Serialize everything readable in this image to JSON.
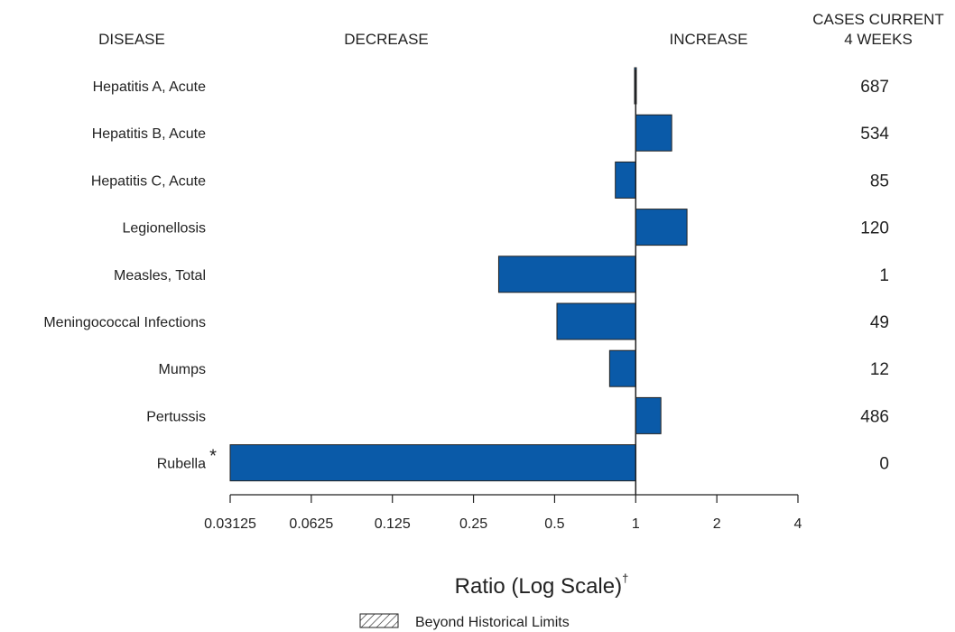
{
  "chart_data": {
    "type": "bar",
    "orientation": "horizontal",
    "x_scale": "log2",
    "xlim": [
      0.03125,
      4
    ],
    "baseline": 1,
    "headers": {
      "disease": "DISEASE",
      "decrease": "DECREASE",
      "increase": "INCREASE",
      "cases_line1": "CASES CURRENT",
      "cases_line2": "4 WEEKS"
    },
    "categories": [
      "Hepatitis A, Acute",
      "Hepatitis B, Acute",
      "Hepatitis C, Acute",
      "Legionellosis",
      "Measles, Total",
      "Meningococcal Infections",
      "Mumps",
      "Pertussis",
      "Rubella"
    ],
    "category_markers": [
      "",
      "",
      "",
      "",
      "",
      "",
      "",
      "",
      "*"
    ],
    "values": [
      0.99,
      1.36,
      0.84,
      1.55,
      0.31,
      0.51,
      0.8,
      1.24,
      0.03125
    ],
    "cases_current_4_weeks": [
      "687",
      "534",
      "85",
      "120",
      "1",
      "49",
      "12",
      "486",
      "0"
    ],
    "xticks": [
      0.03125,
      0.0625,
      0.125,
      0.25,
      0.5,
      1,
      2,
      4
    ],
    "xtick_labels": [
      "0.03125",
      "0.0625",
      "0.125",
      "0.25",
      "0.5",
      "1",
      "2",
      "4"
    ],
    "xlabel": "Ratio (Log Scale)",
    "xlabel_marker": "†",
    "legend": {
      "label": "Beyond Historical Limits",
      "placement": "bottom-center"
    },
    "bar_color": "#0a5aa8",
    "bar_border": "#222222",
    "grid": false
  }
}
